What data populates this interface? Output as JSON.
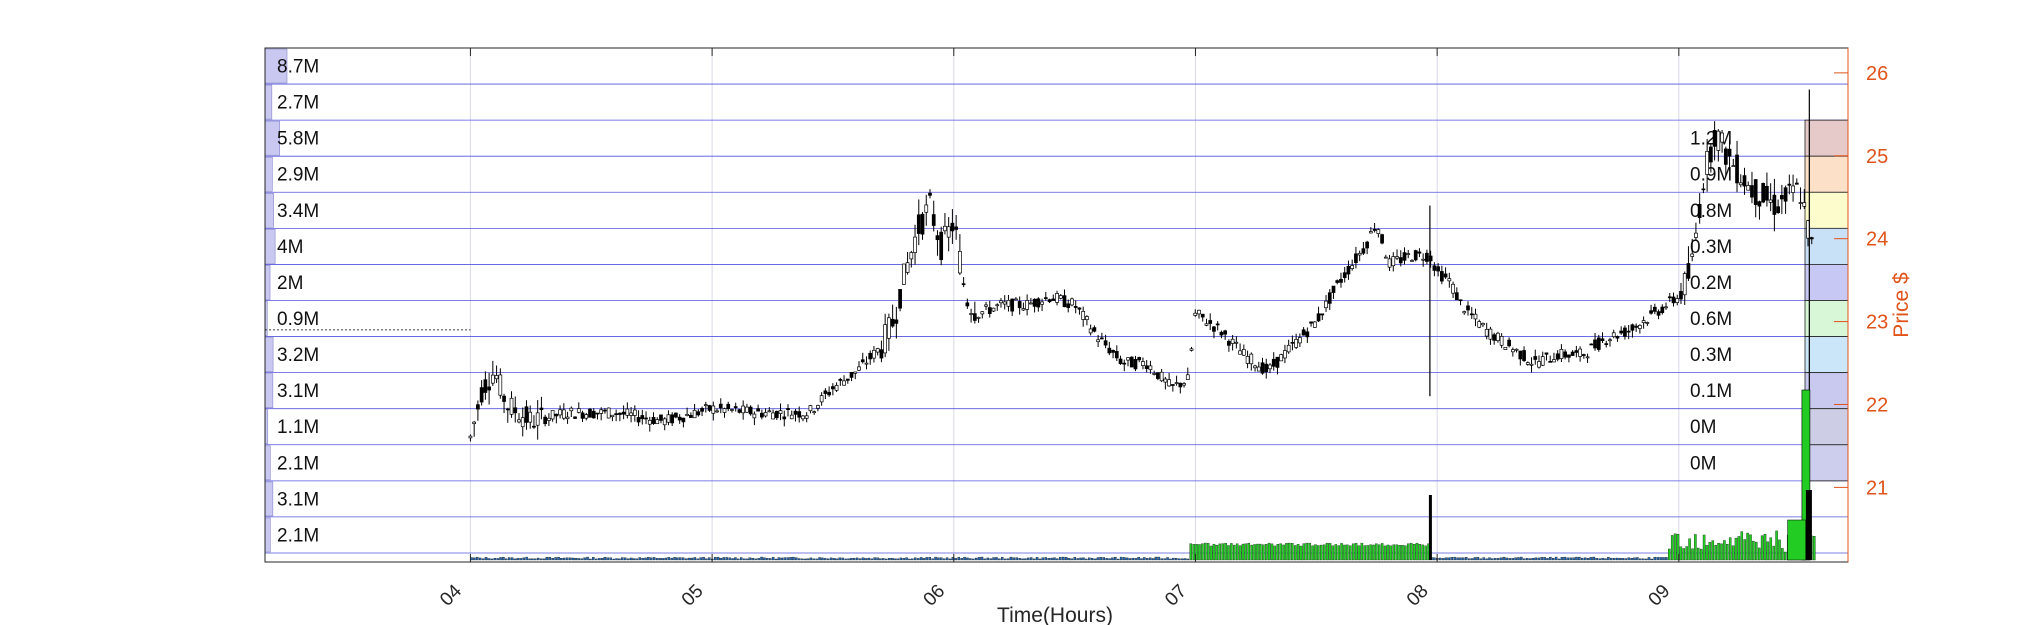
{
  "chart_data": {
    "type": "candlestick",
    "xlabel": "Time(Hours)",
    "ylabel": "Price $",
    "x_ticks": [
      "04",
      "05",
      "06",
      "07",
      "08",
      "09"
    ],
    "x_range_hours": [
      3.15,
      9.7
    ],
    "ylim": [
      20.1,
      26.3
    ],
    "y_ticks": [
      21,
      22,
      23,
      24,
      25,
      26
    ],
    "grid": true,
    "colors": {
      "axis_right": "#e0531b",
      "grid_blue": "#5555dd",
      "grid_gray": "#d9d9ea",
      "candle": "#000000",
      "volume_green": "#22cc22",
      "left_bar": "#c8c8f0",
      "right_box_colors": [
        "#e6c9c9",
        "#fde0c8",
        "#fdfccc",
        "#c9e1f7",
        "#c8c8f4",
        "#d7f7d7",
        "#cbe6f8",
        "#c9c9f0",
        "#cdcde6",
        "#cdcdee"
      ]
    },
    "left_volume_profile": {
      "labels": [
        "8.7M",
        "2.7M",
        "5.8M",
        "2.9M",
        "3.4M",
        "4M",
        "2M",
        "0.9M",
        "3.2M",
        "3.1M",
        "1.1M",
        "2.1M",
        "3.1M",
        "2.1M"
      ],
      "values_m": [
        8.7,
        2.7,
        5.8,
        2.9,
        3.4,
        4.0,
        2.0,
        0.9,
        3.2,
        3.1,
        1.1,
        2.1,
        3.1,
        2.1
      ]
    },
    "right_volume_profile": {
      "labels": [
        "1.2M",
        "0.9M",
        "0.8M",
        "0.3M",
        "0.2M",
        "0.6M",
        "0.3M",
        "0.1M",
        "0M",
        "0M"
      ],
      "values_m": [
        1.2,
        0.9,
        0.8,
        0.3,
        0.2,
        0.6,
        0.3,
        0.1,
        0,
        0
      ]
    },
    "price_path": {
      "t": [
        4.0,
        4.05,
        4.1,
        4.15,
        4.25,
        4.4,
        4.6,
        4.8,
        5.0,
        5.2,
        5.4,
        5.5,
        5.6,
        5.7,
        5.75,
        5.8,
        5.85,
        5.9,
        5.95,
        6.0,
        6.05,
        6.1,
        6.2,
        6.3,
        6.4,
        6.5,
        6.6,
        6.7,
        6.8,
        6.9,
        6.97,
        7.0,
        7.1,
        7.2,
        7.3,
        7.4,
        7.5,
        7.6,
        7.7,
        7.75,
        7.8,
        7.9,
        7.97,
        8.0,
        8.05,
        8.1,
        8.2,
        8.3,
        8.4,
        8.5,
        8.6,
        8.7,
        8.8,
        8.9,
        9.0,
        9.05,
        9.1,
        9.15,
        9.2,
        9.3,
        9.4,
        9.5,
        9.55
      ],
      "p": [
        21.6,
        22.2,
        22.4,
        22.0,
        21.8,
        21.9,
        21.9,
        21.8,
        21.95,
        21.9,
        21.9,
        22.2,
        22.4,
        22.7,
        23.0,
        23.6,
        24.1,
        24.4,
        23.9,
        24.2,
        23.3,
        23.1,
        23.2,
        23.2,
        23.3,
        23.2,
        22.8,
        22.5,
        22.5,
        22.2,
        22.3,
        23.1,
        22.9,
        22.6,
        22.4,
        22.7,
        23.0,
        23.5,
        23.9,
        24.2,
        23.7,
        23.8,
        23.8,
        23.6,
        23.5,
        23.2,
        22.9,
        22.7,
        22.5,
        22.6,
        22.6,
        22.8,
        22.9,
        23.1,
        23.3,
        23.6,
        24.7,
        25.3,
        25.0,
        24.6,
        24.4,
        24.6,
        23.9
      ]
    },
    "volume_bars_hint": "dense green volume from 07 to 08, spikes near 08 and 09.5"
  }
}
